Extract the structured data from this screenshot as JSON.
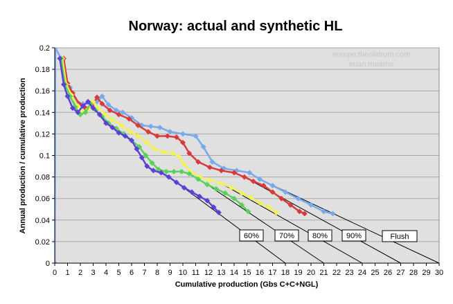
{
  "chart_data": {
    "type": "line",
    "title": "Norway: actual and synthetic HL",
    "xlabel": "Cumulative production (Gbs C+C+NGL)",
    "ylabel": "Annual production / cumulative production",
    "xlim": [
      0,
      30
    ],
    "ylim": [
      0,
      0.2
    ],
    "x_ticks": [
      0,
      1,
      2,
      3,
      4,
      5,
      6,
      7,
      8,
      9,
      10,
      11,
      12,
      13,
      14,
      15,
      16,
      17,
      18,
      19,
      20,
      21,
      22,
      23,
      24,
      25,
      26,
      27,
      28,
      29,
      30
    ],
    "y_ticks": [
      0,
      0.02,
      0.04,
      0.06,
      0.08,
      0.1,
      0.12,
      0.14,
      0.16,
      0.18,
      0.2
    ],
    "y_tick_labels": [
      "0",
      "0.02",
      "0.04",
      "0.06",
      "0.08",
      "0.1",
      "0.12",
      "0.14",
      "0.16",
      "0.18",
      "0.2"
    ],
    "grid": true,
    "plot_background": "#e0e0e0",
    "watermark": [
      "europe.theoildrum.com",
      "euan mearns"
    ],
    "series": [
      {
        "name": "Flush",
        "color": "#78aaeb",
        "points": [
          [
            0,
            0
          ],
          [
            0.05,
            0.2
          ],
          [
            0.5,
            0.19
          ],
          [
            0.8,
            0.17
          ],
          [
            1.2,
            0.163
          ],
          [
            1.6,
            0.15
          ],
          [
            2.2,
            0.148
          ],
          [
            2.8,
            0.148
          ],
          [
            3.3,
            0.15
          ],
          [
            3.7,
            0.155
          ],
          [
            4.2,
            0.147
          ],
          [
            4.8,
            0.142
          ],
          [
            5.3,
            0.14
          ],
          [
            6,
            0.135
          ],
          [
            6.8,
            0.128
          ],
          [
            7.5,
            0.127
          ],
          [
            8.2,
            0.126
          ],
          [
            9,
            0.122
          ],
          [
            10,
            0.12
          ],
          [
            11,
            0.118
          ],
          [
            11.6,
            0.108
          ],
          [
            12.3,
            0.094
          ],
          [
            13.2,
            0.088
          ],
          [
            14.2,
            0.086
          ],
          [
            15.2,
            0.084
          ],
          [
            16,
            0.078
          ],
          [
            17,
            0.072
          ],
          [
            18,
            0.066
          ],
          [
            19,
            0.06
          ],
          [
            20,
            0.054
          ],
          [
            21,
            0.048
          ],
          [
            21.7,
            0.046
          ]
        ],
        "trend": [
          [
            16,
            0.078
          ],
          [
            30,
            0
          ]
        ]
      },
      {
        "name": "90%",
        "color": "#d83a3a",
        "points": [
          [
            0.7,
            0.19
          ],
          [
            1,
            0.167
          ],
          [
            1.4,
            0.158
          ],
          [
            1.9,
            0.148
          ],
          [
            2.4,
            0.144
          ],
          [
            2.9,
            0.146
          ],
          [
            3.3,
            0.154
          ],
          [
            3.7,
            0.148
          ],
          [
            4.3,
            0.142
          ],
          [
            5,
            0.138
          ],
          [
            5.8,
            0.134
          ],
          [
            6.5,
            0.128
          ],
          [
            7.3,
            0.122
          ],
          [
            8,
            0.118
          ],
          [
            8.8,
            0.118
          ],
          [
            9.5,
            0.117
          ],
          [
            10,
            0.112
          ],
          [
            10.5,
            0.102
          ],
          [
            11.2,
            0.094
          ],
          [
            12.1,
            0.089
          ],
          [
            13,
            0.086
          ],
          [
            14,
            0.084
          ],
          [
            14.8,
            0.08
          ],
          [
            15.5,
            0.076
          ],
          [
            16.3,
            0.072
          ],
          [
            17,
            0.066
          ],
          [
            17.7,
            0.06
          ],
          [
            18.4,
            0.054
          ],
          [
            19.1,
            0.048
          ],
          [
            19.5,
            0.046
          ]
        ],
        "trend": [
          [
            14.8,
            0.08
          ],
          [
            27,
            0
          ]
        ]
      },
      {
        "name": "80%",
        "color": "#f2f25a",
        "points": [
          [
            0.6,
            0.19
          ],
          [
            0.9,
            0.166
          ],
          [
            1.3,
            0.156
          ],
          [
            1.8,
            0.146
          ],
          [
            2.2,
            0.14
          ],
          [
            2.6,
            0.143
          ],
          [
            3,
            0.15
          ],
          [
            3.4,
            0.144
          ],
          [
            3.9,
            0.138
          ],
          [
            4.5,
            0.133
          ],
          [
            5.2,
            0.128
          ],
          [
            5.9,
            0.122
          ],
          [
            6.5,
            0.118
          ],
          [
            7.2,
            0.112
          ],
          [
            7.8,
            0.106
          ],
          [
            8.5,
            0.103
          ],
          [
            9.2,
            0.102
          ],
          [
            9.7,
            0.099
          ],
          [
            10.1,
            0.092
          ],
          [
            10.6,
            0.085
          ],
          [
            11.3,
            0.08
          ],
          [
            12.1,
            0.077
          ],
          [
            13,
            0.074
          ],
          [
            13.8,
            0.07
          ],
          [
            14.6,
            0.065
          ],
          [
            15.3,
            0.061
          ],
          [
            16,
            0.056
          ],
          [
            16.7,
            0.052
          ],
          [
            17.3,
            0.047
          ]
        ],
        "trend": [
          [
            13,
            0.074
          ],
          [
            24,
            0
          ]
        ]
      },
      {
        "name": "70%",
        "color": "#5ad15a",
        "points": [
          [
            0.5,
            0.19
          ],
          [
            0.8,
            0.166
          ],
          [
            1.2,
            0.155
          ],
          [
            1.6,
            0.145
          ],
          [
            2,
            0.138
          ],
          [
            2.4,
            0.14
          ],
          [
            2.8,
            0.148
          ],
          [
            3.2,
            0.142
          ],
          [
            3.7,
            0.136
          ],
          [
            4.2,
            0.13
          ],
          [
            4.8,
            0.125
          ],
          [
            5.4,
            0.12
          ],
          [
            6,
            0.114
          ],
          [
            6.6,
            0.108
          ],
          [
            7.1,
            0.1
          ],
          [
            7.6,
            0.093
          ],
          [
            8.1,
            0.087
          ],
          [
            8.7,
            0.085
          ],
          [
            9.3,
            0.085
          ],
          [
            9.9,
            0.085
          ],
          [
            10.5,
            0.083
          ],
          [
            11.2,
            0.078
          ],
          [
            11.9,
            0.073
          ],
          [
            12.6,
            0.069
          ],
          [
            13.3,
            0.065
          ],
          [
            14,
            0.06
          ],
          [
            14.6,
            0.054
          ],
          [
            15.1,
            0.048
          ]
        ],
        "trend": [
          [
            11.9,
            0.073
          ],
          [
            21,
            0
          ]
        ]
      },
      {
        "name": "60%",
        "color": "#5e3fd6",
        "points": [
          [
            0.4,
            0.19
          ],
          [
            0.7,
            0.166
          ],
          [
            1,
            0.155
          ],
          [
            1.4,
            0.144
          ],
          [
            1.8,
            0.14
          ],
          [
            2.2,
            0.146
          ],
          [
            2.6,
            0.15
          ],
          [
            3,
            0.144
          ],
          [
            3.5,
            0.138
          ],
          [
            4,
            0.13
          ],
          [
            4.5,
            0.126
          ],
          [
            5,
            0.121
          ],
          [
            5.5,
            0.118
          ],
          [
            6,
            0.114
          ],
          [
            6.4,
            0.106
          ],
          [
            6.8,
            0.098
          ],
          [
            7.2,
            0.09
          ],
          [
            7.7,
            0.086
          ],
          [
            8.3,
            0.084
          ],
          [
            8.9,
            0.08
          ],
          [
            9.5,
            0.075
          ],
          [
            10.1,
            0.07
          ],
          [
            10.7,
            0.066
          ],
          [
            11.3,
            0.062
          ],
          [
            11.9,
            0.058
          ],
          [
            12.4,
            0.052
          ],
          [
            12.8,
            0.047
          ]
        ],
        "trend": [
          [
            9.5,
            0.075
          ],
          [
            18,
            0
          ]
        ]
      }
    ],
    "annotations": [
      {
        "text": "60%",
        "series": "60%"
      },
      {
        "text": "70%",
        "series": "70%"
      },
      {
        "text": "80%",
        "series": "80%"
      },
      {
        "text": "90%",
        "series": "90%"
      },
      {
        "text": "Flush",
        "series": "Flush"
      }
    ]
  }
}
